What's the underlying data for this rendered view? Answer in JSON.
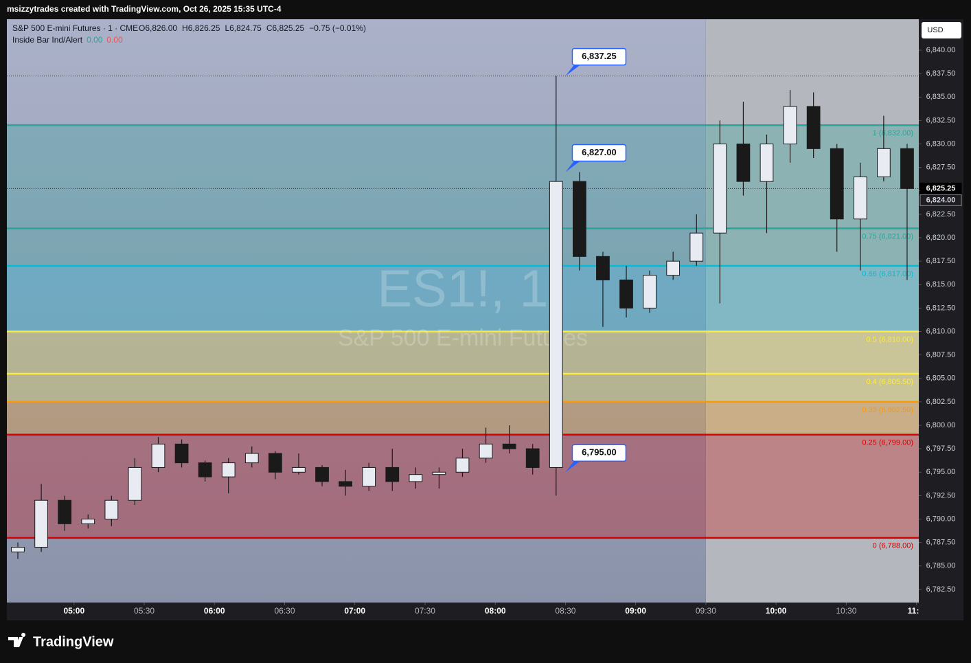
{
  "header": {
    "caption": "msizzytrades created with TradingView.com, Oct 26, 2025 15:35 UTC-4"
  },
  "footer": {
    "brand": "TradingView"
  },
  "chart_data": {
    "type": "candlestick",
    "title": "S&P 500 E-mini Futures · 1 · CME",
    "legend_values": [
      "O6,826.00",
      "H6,826.25",
      "L6,824.75",
      "C6,825.25",
      "−0.75 (−0.01%)"
    ],
    "indicator": {
      "name": "Inside Bar Ind/Alert",
      "values": [
        "0.00",
        "0.00"
      ],
      "colors": [
        "#26a69a",
        "#ef5350"
      ]
    },
    "currency": "USD",
    "watermark": [
      "ES1!, 1",
      "S&P 500 E-mini Futures"
    ],
    "x": [
      276,
      286,
      296,
      306,
      316,
      326,
      336,
      346,
      356,
      366,
      376,
      386,
      396,
      406,
      416,
      426,
      436,
      446,
      456,
      466,
      476,
      486,
      496,
      506,
      516,
      526,
      536,
      546,
      556,
      566,
      576,
      586,
      596,
      606,
      616,
      626,
      636,
      646,
      656
    ],
    "open": [
      6786.5,
      6787,
      6792,
      6789.5,
      6790,
      6792,
      6795.5,
      6798,
      6796,
      6794.5,
      6796,
      6797,
      6795,
      6795.5,
      6794,
      6793.5,
      6795.5,
      6794,
      6794.75,
      6795,
      6796.5,
      6798,
      6797.5,
      6795.5,
      6826,
      6818,
      6815.5,
      6812.5,
      6816,
      6817.5,
      6820.5,
      6830,
      6826,
      6830,
      6834,
      6829.5,
      6822,
      6826.5,
      6829.5
    ],
    "high": [
      6787.5,
      6793.75,
      6792.5,
      6790.5,
      6792.5,
      6796.5,
      6798.75,
      6798.5,
      6796.25,
      6796.5,
      6797.75,
      6797.25,
      6797,
      6795.75,
      6795.25,
      6796,
      6797.5,
      6795.5,
      6795.5,
      6797.5,
      6799.75,
      6800,
      6798,
      6837.25,
      6827,
      6818.5,
      6817,
      6816.5,
      6818.5,
      6822.5,
      6832.5,
      6834.5,
      6831,
      6835.75,
      6835.5,
      6830,
      6828,
      6833,
      6830
    ],
    "low": [
      6785.75,
      6786.5,
      6788.75,
      6789,
      6789.25,
      6791.5,
      6795,
      6795.5,
      6794,
      6792.75,
      6795.5,
      6794.25,
      6794.75,
      6793.5,
      6792.5,
      6793,
      6793,
      6793.25,
      6793.25,
      6794.5,
      6796,
      6797,
      6794.75,
      6792.5,
      6816.5,
      6810.5,
      6811.5,
      6812,
      6815.5,
      6817,
      6813,
      6824.5,
      6820.5,
      6828,
      6828.5,
      6818.5,
      6816.5,
      6826,
      6815.5
    ],
    "close": [
      6787,
      6792,
      6789.5,
      6790,
      6792,
      6795.5,
      6798,
      6796,
      6794.5,
      6796,
      6797,
      6795,
      6795.5,
      6794,
      6793.5,
      6795.5,
      6794,
      6794.75,
      6795,
      6796.5,
      6798,
      6797.5,
      6795.5,
      6826,
      6818,
      6815.5,
      6812.5,
      6816,
      6817.5,
      6820.5,
      6830,
      6826,
      6830,
      6834,
      6829.5,
      6822,
      6826.5,
      6829.5,
      6825.25
    ],
    "up_color": "#1a1a1a",
    "down_color": "#1a1a1a",
    "xlim": [
      271.3,
      661
    ],
    "xticks": [
      {
        "value": 300,
        "label": "05:00"
      },
      {
        "value": 330,
        "label": "05:30"
      },
      {
        "value": 360,
        "label": "06:00"
      },
      {
        "value": 390,
        "label": "06:30"
      },
      {
        "value": 420,
        "label": "07:00"
      },
      {
        "value": 450,
        "label": "07:30"
      },
      {
        "value": 480,
        "label": "08:00"
      },
      {
        "value": 510,
        "label": "08:30"
      },
      {
        "value": 540,
        "label": "09:00"
      },
      {
        "value": 570,
        "label": "09:30"
      },
      {
        "value": 600,
        "label": "10:00"
      },
      {
        "value": 630,
        "label": "10:30"
      },
      {
        "value": 660,
        "label": "11:"
      }
    ],
    "regular_session_start": 570,
    "ylim": [
      6781.1,
      6843.3
    ],
    "yticks": [
      {
        "value": 6782.5,
        "label": "6,782.50"
      },
      {
        "value": 6785,
        "label": "6,785.00"
      },
      {
        "value": 6787.5,
        "label": "6,787.50"
      },
      {
        "value": 6790,
        "label": "6,790.00"
      },
      {
        "value": 6792.5,
        "label": "6,792.50"
      },
      {
        "value": 6795,
        "label": "6,795.00"
      },
      {
        "value": 6797.5,
        "label": "6,797.50"
      },
      {
        "value": 6800,
        "label": "6,800.00"
      },
      {
        "value": 6802.5,
        "label": "6,802.50"
      },
      {
        "value": 6805,
        "label": "6,805.00"
      },
      {
        "value": 6807.5,
        "label": "6,807.50"
      },
      {
        "value": 6810,
        "label": "6,810.00"
      },
      {
        "value": 6812.5,
        "label": "6,812.50"
      },
      {
        "value": 6815,
        "label": "6,815.00"
      },
      {
        "value": 6817.5,
        "label": "6,817.50"
      },
      {
        "value": 6820,
        "label": "6,820.00"
      },
      {
        "value": 6822.5,
        "label": "6,822.50"
      },
      {
        "value": 6825,
        "label": "6,825.00"
      },
      {
        "value": 6827.5,
        "label": "6,827.50"
      },
      {
        "value": 6830,
        "label": "6,830.00"
      },
      {
        "value": 6832.5,
        "label": "6,832.50"
      },
      {
        "value": 6835,
        "label": "6,835.00"
      },
      {
        "value": 6837.5,
        "label": "6,837.50"
      },
      {
        "value": 6840,
        "label": "6,840.00"
      }
    ],
    "fib_levels": [
      {
        "value": 6832,
        "label": "1 (6,832.00)",
        "color": "#26a69a"
      },
      {
        "value": 6821,
        "label": "0.75 (6,821.00)",
        "color": "#26a69a"
      },
      {
        "value": 6817,
        "label": "0.66 (6,817.00)",
        "color": "#00bcd4"
      },
      {
        "value": 6810,
        "label": "0.5 (6,810.00)",
        "color": "#ffeb3b"
      },
      {
        "value": 6805.5,
        "label": "0.4 (6,805.50)",
        "color": "#ffeb3b"
      },
      {
        "value": 6802.5,
        "label": "0.33 (6,802.50)",
        "color": "#ff9800"
      },
      {
        "value": 6799,
        "label": "0.25 (6,799.00)",
        "color": "#d50000"
      },
      {
        "value": 6788,
        "label": "0 (6,788.00)",
        "color": "#d50000"
      }
    ],
    "callouts": [
      {
        "x": 510,
        "value": 6837.25,
        "label": "6,837.25"
      },
      {
        "x": 510,
        "value": 6827,
        "label": "6,827.00"
      },
      {
        "x": 510,
        "value": 6795,
        "label": "6,795.00"
      }
    ],
    "last_price": {
      "value": 6825.25,
      "label": "6,825.25"
    },
    "marker_price": {
      "value": 6824,
      "label": "6,824.00"
    }
  }
}
